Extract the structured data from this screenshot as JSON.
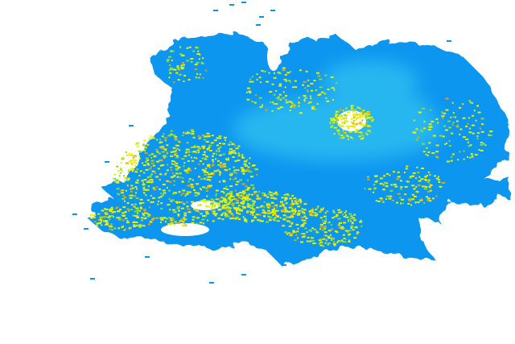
{
  "map": {
    "layer": "radar-echo",
    "colors": {
      "background": "#ffffff",
      "light_echo": "#0a96f0",
      "light_echo_bright": "#22b4f4",
      "core_echo": "#3cd2f0",
      "moderate_echo": "#e6f000",
      "moderate_echo_green": "#8cdc28",
      "strong_echo": "#f0a000"
    }
  }
}
